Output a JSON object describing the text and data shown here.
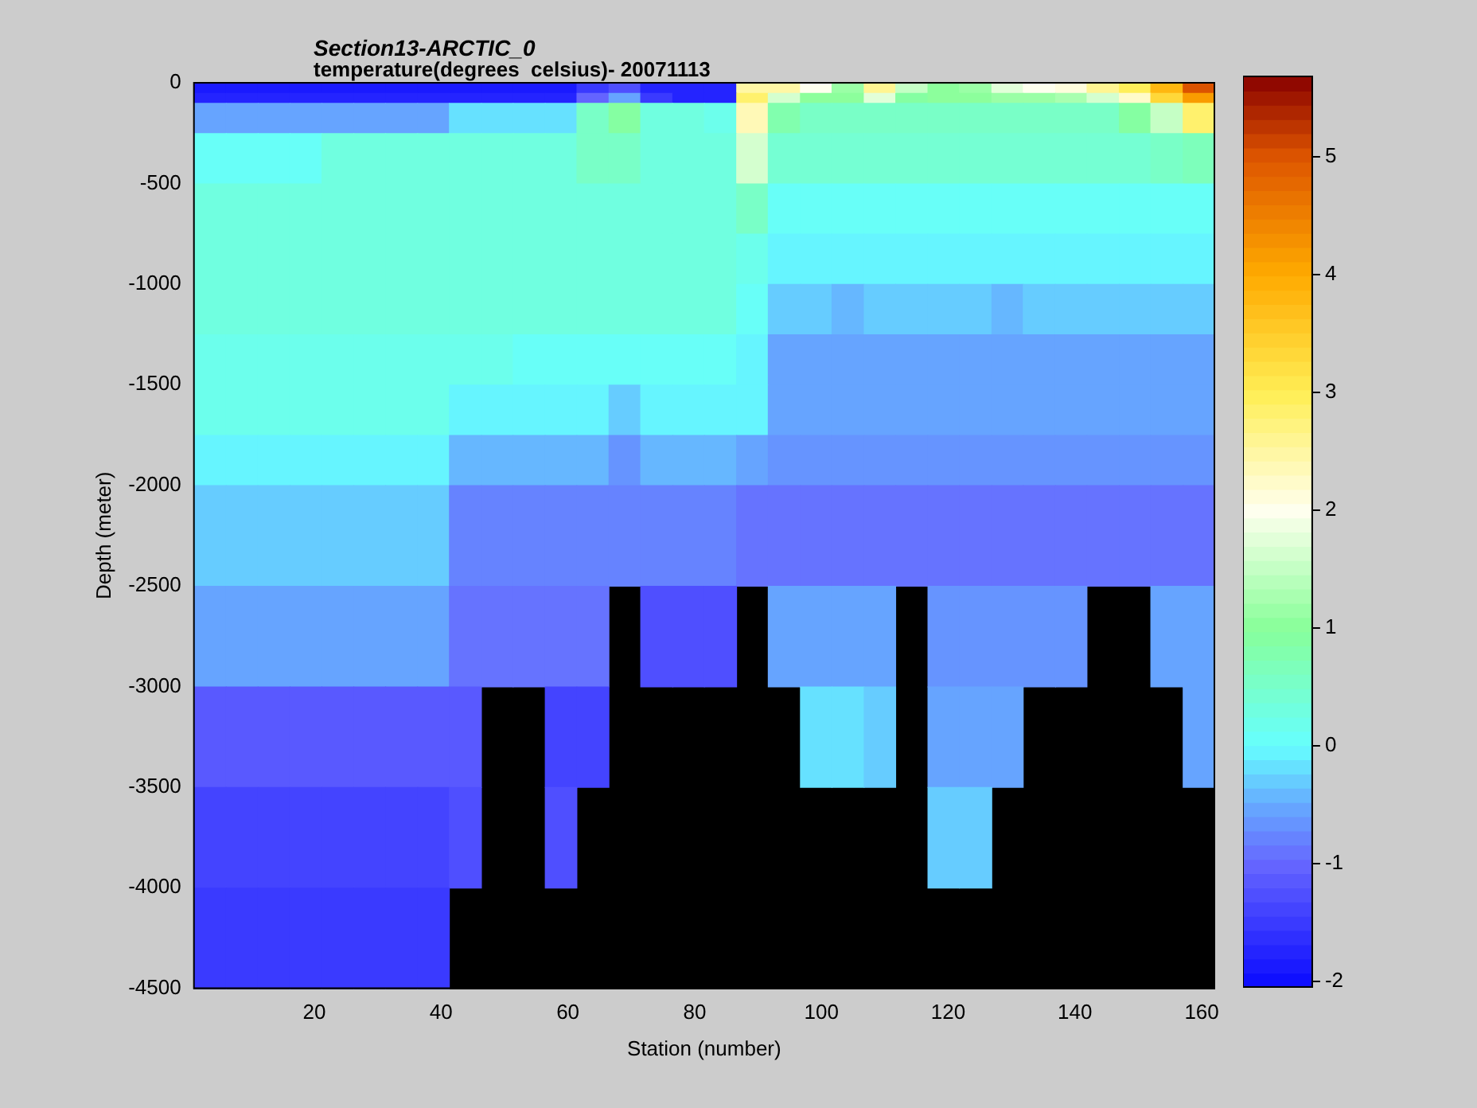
{
  "chart_data": {
    "type": "heatmap",
    "title": "Section13-ARCTIC_0",
    "subtitle": "temperature(degrees  celsius)- 20071113",
    "xlabel": "Station (number)",
    "ylabel": "Depth (meter)",
    "x": [
      3.52,
      8.55,
      13.58,
      18.61,
      23.64,
      28.67,
      33.7,
      38.73,
      43.77,
      48.8,
      53.83,
      58.86,
      63.89,
      68.92,
      73.95,
      78.98,
      84.02,
      89.05,
      94.08,
      99.11,
      104.14,
      109.17,
      114.2,
      119.23,
      124.27,
      129.3,
      134.33,
      139.36,
      144.39,
      149.42,
      154.45,
      159.48
    ],
    "y": [
      -25,
      -75,
      -175,
      -375,
      -625,
      -875,
      -1125,
      -1375,
      -1625,
      -1875,
      -2250,
      -2750,
      -3250,
      -3750,
      -4250
    ],
    "xlim": [
      1,
      162
    ],
    "ylim": [
      -4500,
      0
    ],
    "xticks": [
      20,
      40,
      60,
      80,
      100,
      120,
      140,
      160
    ],
    "yticks": [
      0,
      -500,
      -1000,
      -1500,
      -2000,
      -2500,
      -3000,
      -3500,
      -4000,
      -4500
    ],
    "clim": [
      -2.05,
      5.68
    ],
    "cticks": [
      -2,
      -1,
      0,
      1,
      2,
      3,
      4,
      5
    ],
    "cells": [
      [
        -1.9,
        -1.9,
        -1.9,
        -1.9,
        -1.9,
        -1.9,
        -1.9,
        -1.9,
        -1.9,
        -1.9,
        -1.9,
        -1.9,
        -1.5,
        -1.3,
        -1.8,
        -1.8,
        -1.8,
        2.5,
        2.5,
        2.0,
        1.2,
        2.6,
        1.5,
        1.0,
        1.2,
        1.8,
        2.0,
        2.1,
        2.6,
        3.0,
        3.8,
        5.0
      ],
      [
        -1.8,
        -1.8,
        -1.8,
        -1.8,
        -1.8,
        -1.8,
        -1.8,
        -1.8,
        -1.8,
        -1.8,
        -1.8,
        -1.8,
        -1.0,
        -0.6,
        -1.5,
        -1.8,
        -1.8,
        2.8,
        1.6,
        1.0,
        1.0,
        1.8,
        0.9,
        1.0,
        1.0,
        1.1,
        1.2,
        1.3,
        1.6,
        2.2,
        3.3,
        4.2
      ],
      [
        -0.6,
        -0.6,
        -0.6,
        -0.6,
        -0.6,
        -0.6,
        -0.6,
        -0.6,
        -0.2,
        -0.2,
        -0.2,
        -0.2,
        0.6,
        0.9,
        0.3,
        0.3,
        0.2,
        2.4,
        0.8,
        0.6,
        0.6,
        0.6,
        0.6,
        0.6,
        0.6,
        0.6,
        0.6,
        0.6,
        0.6,
        0.9,
        1.5,
        2.8
      ],
      [
        0.1,
        0.1,
        0.1,
        0.1,
        0.3,
        0.3,
        0.3,
        0.3,
        0.3,
        0.3,
        0.3,
        0.3,
        0.5,
        0.5,
        0.3,
        0.3,
        0.3,
        1.6,
        0.4,
        0.4,
        0.4,
        0.4,
        0.4,
        0.4,
        0.4,
        0.4,
        0.4,
        0.4,
        0.4,
        0.4,
        0.5,
        0.7
      ],
      [
        0.3,
        0.3,
        0.3,
        0.3,
        0.3,
        0.3,
        0.3,
        0.3,
        0.3,
        0.3,
        0.3,
        0.3,
        0.3,
        0.3,
        0.3,
        0.3,
        0.3,
        0.5,
        0.1,
        0.1,
        0.1,
        0.1,
        0.1,
        0.1,
        0.1,
        0.1,
        0.1,
        0.1,
        0.1,
        0.1,
        0.1,
        0.1
      ],
      [
        0.3,
        0.3,
        0.3,
        0.3,
        0.3,
        0.3,
        0.3,
        0.3,
        0.3,
        0.3,
        0.3,
        0.3,
        0.3,
        0.3,
        0.3,
        0.3,
        0.3,
        0.2,
        -0.1,
        -0.1,
        -0.1,
        -0.1,
        -0.1,
        -0.1,
        -0.1,
        -0.1,
        -0.1,
        -0.1,
        -0.1,
        -0.1,
        -0.1,
        -0.1
      ],
      [
        0.3,
        0.3,
        0.3,
        0.3,
        0.3,
        0.3,
        0.3,
        0.3,
        0.3,
        0.3,
        0.3,
        0.3,
        0.3,
        0.3,
        0.3,
        0.3,
        0.3,
        0.1,
        -0.3,
        -0.3,
        -0.4,
        -0.3,
        -0.3,
        -0.3,
        -0.3,
        -0.4,
        -0.3,
        -0.3,
        -0.3,
        -0.3,
        -0.3,
        -0.3
      ],
      [
        0.2,
        0.2,
        0.2,
        0.2,
        0.2,
        0.2,
        0.2,
        0.2,
        0.2,
        0.2,
        0.1,
        0.1,
        0.1,
        0.1,
        0.1,
        0.1,
        0.1,
        0.0,
        -0.5,
        -0.5,
        -0.5,
        -0.5,
        -0.5,
        -0.5,
        -0.5,
        -0.5,
        -0.5,
        -0.5,
        -0.5,
        -0.5,
        -0.5,
        -0.5
      ],
      [
        0.2,
        0.2,
        0.2,
        0.2,
        0.2,
        0.2,
        0.2,
        0.2,
        0.0,
        0.0,
        0.0,
        0.0,
        0.0,
        -0.3,
        0.0,
        0.0,
        0.0,
        -0.1,
        -0.6,
        -0.6,
        -0.6,
        -0.6,
        -0.6,
        -0.6,
        -0.6,
        -0.6,
        -0.6,
        -0.6,
        -0.6,
        -0.6,
        -0.6,
        -0.6
      ],
      [
        0.0,
        0.0,
        0.0,
        0.0,
        0.0,
        0.0,
        0.0,
        0.0,
        -0.4,
        -0.4,
        -0.4,
        -0.4,
        -0.4,
        -0.7,
        -0.4,
        -0.4,
        -0.4,
        -0.5,
        -0.7,
        -0.7,
        -0.7,
        -0.7,
        -0.7,
        -0.7,
        -0.7,
        -0.7,
        -0.7,
        -0.7,
        -0.7,
        -0.7,
        -0.7,
        -0.7
      ],
      [
        -0.35,
        -0.35,
        -0.35,
        -0.35,
        -0.35,
        -0.35,
        -0.35,
        -0.35,
        -0.8,
        -0.8,
        -0.8,
        -0.8,
        -0.8,
        -0.8,
        -0.8,
        -0.8,
        -0.8,
        -0.85,
        -0.85,
        -0.85,
        -0.85,
        -0.85,
        -0.85,
        -0.85,
        -0.85,
        -0.85,
        -0.85,
        -0.85,
        -0.85,
        -0.85,
        -0.85,
        -0.85
      ],
      [
        -0.6,
        -0.6,
        -0.6,
        -0.6,
        -0.6,
        -0.6,
        -0.6,
        -0.6,
        -0.9,
        -0.9,
        -0.9,
        -0.9,
        -0.9,
        null,
        -1.3,
        -1.3,
        -1.3,
        null,
        -0.6,
        -0.6,
        -0.6,
        -0.6,
        null,
        -0.7,
        -0.7,
        -0.7,
        -0.7,
        -0.7,
        null,
        null,
        -0.6,
        -0.6
      ],
      [
        -1.1,
        -1.1,
        -1.1,
        -1.1,
        -1.1,
        -1.1,
        -1.1,
        -1.1,
        -1.2,
        null,
        null,
        -1.4,
        -1.4,
        null,
        null,
        null,
        null,
        null,
        null,
        -0.2,
        -0.2,
        -0.3,
        null,
        -0.6,
        -0.6,
        -0.6,
        null,
        null,
        null,
        null,
        null,
        -0.5
      ],
      [
        -1.4,
        -1.4,
        -1.4,
        -1.4,
        -1.4,
        -1.4,
        -1.4,
        -1.4,
        -1.3,
        null,
        null,
        -1.3,
        null,
        null,
        null,
        null,
        null,
        null,
        null,
        null,
        null,
        null,
        null,
        -0.3,
        -0.3,
        null,
        null,
        null,
        null,
        null,
        null,
        null
      ],
      [
        -1.5,
        -1.5,
        -1.5,
        -1.5,
        -1.5,
        -1.5,
        -1.5,
        -1.5,
        null,
        null,
        null,
        null,
        null,
        null,
        null,
        null,
        null,
        null,
        null,
        null,
        null,
        null,
        null,
        null,
        null,
        null,
        null,
        null,
        null,
        null,
        null,
        null
      ]
    ]
  }
}
